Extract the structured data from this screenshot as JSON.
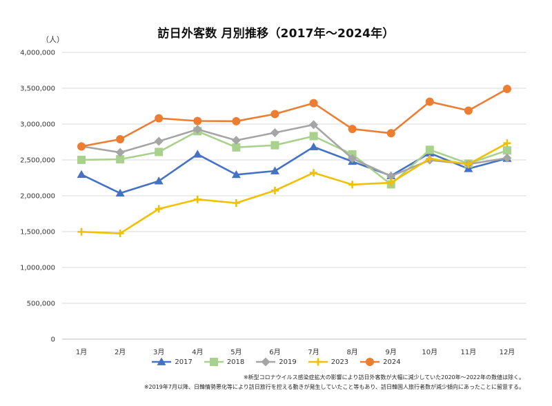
{
  "chart_data": {
    "type": "line",
    "title": "訪日外客数 月別推移（2017年～2024年）",
    "ylabel": "（人）",
    "xlabel": "",
    "categories": [
      "1月",
      "2月",
      "3月",
      "4月",
      "5月",
      "6月",
      "7月",
      "8月",
      "9月",
      "10月",
      "11月",
      "12月"
    ],
    "ylim": [
      0,
      4000000
    ],
    "yticks": [
      0,
      500000,
      1000000,
      1500000,
      2000000,
      2500000,
      3000000,
      3500000,
      4000000
    ],
    "ytick_labels": [
      "0",
      "500,000",
      "1,000,000",
      "1,500,000",
      "2,000,000",
      "2,500,000",
      "3,000,000",
      "3,500,000",
      "4,000,000"
    ],
    "grid": true,
    "legend_position": "bottom",
    "series": [
      {
        "name": "2017",
        "color": "#4472c4",
        "marker": "triangle",
        "values": [
          2296000,
          2036000,
          2206000,
          2579000,
          2294000,
          2346000,
          2682000,
          2478000,
          2279000,
          2595000,
          2377000,
          2521000
        ]
      },
      {
        "name": "2018",
        "color": "#a9d18e",
        "marker": "square",
        "values": [
          2501000,
          2509000,
          2611000,
          2901000,
          2675000,
          2705000,
          2832000,
          2578000,
          2159000,
          2641000,
          2449000,
          2632000
        ]
      },
      {
        "name": "2019",
        "color": "#a5a5a5",
        "marker": "diamond",
        "values": [
          2689000,
          2604000,
          2760000,
          2927000,
          2773000,
          2880000,
          2991000,
          2520000,
          2273000,
          2497000,
          2441000,
          2526000
        ]
      },
      {
        "name": "2023",
        "color": "#f2c000",
        "marker": "plus",
        "values": [
          1497000,
          1475000,
          1817000,
          1949000,
          1899000,
          2073000,
          2320000,
          2156000,
          2182000,
          2517000,
          2441000,
          2734000
        ]
      },
      {
        "name": "2024",
        "color": "#ed7d31",
        "marker": "circle",
        "values": [
          2688000,
          2788000,
          3081000,
          3043000,
          3040000,
          3140000,
          3292000,
          2932000,
          2872000,
          3312000,
          3188000,
          3490000
        ]
      }
    ]
  },
  "notes": [
    "※新型コロナウイルス感染症拡大の影響により訪日外客数が大幅に減少していた2020年～2022年の数値は除く。",
    "※2019年7月以降、日韓情勢悪化等により訪日旅行を控える動きが発生していたこと等もあり、訪日韓国人旅行者数が減少傾向にあったことに留意する。"
  ]
}
